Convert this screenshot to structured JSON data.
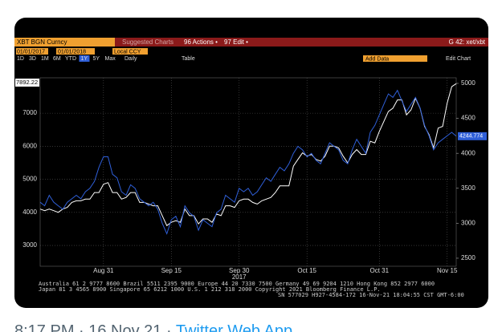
{
  "toolbar": {
    "ticker": "XBT BGN Curncy",
    "suggested": "Suggested Charts",
    "actions": "96 Actions •",
    "edit": "97 Edit •",
    "chart_id": "G 42: xet/xbt",
    "start_date": "01/01/2017",
    "end_date": "01/01/2018",
    "currency": "Local CCY",
    "periods": [
      "1D",
      "3D",
      "1M",
      "6M",
      "YTD",
      "1Y",
      "5Y",
      "Max"
    ],
    "frequency": "Daily",
    "table": "Table",
    "add_data": "Add Data",
    "edit_chart": "Edit Chart"
  },
  "chart_data": {
    "type": "line",
    "year": "2017",
    "categories": [
      null,
      null,
      null,
      null,
      null,
      null,
      null,
      null,
      null,
      null,
      null,
      null,
      null,
      null,
      "Aug 31",
      null,
      null,
      null,
      null,
      null,
      null,
      null,
      null,
      null,
      null,
      null,
      null,
      null,
      null,
      "Sep 15",
      null,
      null,
      null,
      null,
      null,
      null,
      null,
      null,
      null,
      null,
      null,
      null,
      null,
      null,
      "Sep 30",
      null,
      null,
      null,
      null,
      null,
      null,
      null,
      null,
      null,
      null,
      null,
      null,
      null,
      null,
      "Oct 15",
      null,
      null,
      null,
      null,
      null,
      null,
      null,
      null,
      null,
      null,
      null,
      null,
      null,
      null,
      null,
      "Oct 31",
      null,
      null,
      null,
      null,
      null,
      null,
      null,
      null,
      null,
      null,
      null,
      null,
      null,
      null,
      "Nov 15",
      null,
      null
    ],
    "series": [
      {
        "color": "#ffffff",
        "values": [
          4100,
          4050,
          4100,
          4050,
          4000,
          4100,
          4150,
          4300,
          4350,
          4350,
          4400,
          4400,
          4600,
          4600,
          4850,
          4900,
          4600,
          4600,
          4400,
          4450,
          4600,
          4600,
          4300,
          4300,
          4250,
          4200,
          4200,
          3900,
          3600,
          3700,
          3750,
          3700,
          4100,
          3900,
          3900,
          3650,
          3800,
          3800,
          3700,
          3950,
          3900,
          4200,
          4200,
          4150,
          4350,
          4400,
          4400,
          4300,
          4250,
          4350,
          4400,
          4450,
          4600,
          4800,
          4800,
          4800,
          5400,
          5600,
          5800,
          5700,
          5750,
          5600,
          5550,
          5700,
          6000,
          6000,
          5950,
          5700,
          5500,
          5750,
          5900,
          5750,
          5750,
          6150,
          6100,
          6450,
          6750,
          7050,
          7150,
          7400,
          7400,
          6950,
          7100,
          7450,
          7150,
          6600,
          6350,
          5950,
          6550,
          6600,
          7300,
          7800,
          7892.22
        ]
      },
      {
        "color": "#2f5fd8",
        "axis": "y2",
        "values": [
          3300,
          3250,
          3400,
          3300,
          3250,
          3200,
          3300,
          3350,
          3400,
          3350,
          3450,
          3500,
          3600,
          3800,
          3950,
          3950,
          3700,
          3650,
          3450,
          3400,
          3550,
          3500,
          3350,
          3300,
          3250,
          3300,
          3200,
          3000,
          2850,
          3050,
          3100,
          2950,
          3250,
          3150,
          3100,
          2900,
          3050,
          3000,
          2950,
          3150,
          3200,
          3400,
          3350,
          3300,
          3500,
          3450,
          3500,
          3400,
          3450,
          3550,
          3650,
          3600,
          3700,
          3800,
          3750,
          3850,
          4000,
          4100,
          4050,
          3950,
          4000,
          3900,
          3850,
          4000,
          4150,
          4100,
          4050,
          3900,
          3850,
          4050,
          4200,
          4100,
          4000,
          4300,
          4400,
          4550,
          4700,
          4850,
          4800,
          4900,
          4750,
          4600,
          4700,
          4800,
          4650,
          4400,
          4250,
          4050,
          4150,
          4200,
          4250,
          4300,
          4244.774
        ]
      }
    ],
    "ylim": [
      2370,
      8070
    ],
    "yticks": [
      3000,
      4000,
      5000,
      6000,
      7000
    ],
    "y2lim": [
      2385,
      5080
    ],
    "y2ticks": [
      2500,
      3000,
      3500,
      4000,
      4500,
      5000
    ],
    "grid": true
  },
  "footer": {
    "line1": "Australia 61 2 9777 8600  Brazil 5511 2395 9000  Europe 44 20 7330 7500  Germany 49 69 9204 1210  Hong Kong 852 2977 6000",
    "line2": "Japan 81 3 4565 8900          Singapore 65 6212 1000          U.S. 1 212 318 2000               Copyright 2021 Bloomberg Finance L.P.",
    "line3": "SN 577029 H927-4584-172 16-Nov-21 18:04:55 CST  GMT-6:00"
  },
  "tweet": {
    "timestamp": "8:17 PM · 16 Nov 21 · ",
    "source": "Twitter Web App"
  }
}
